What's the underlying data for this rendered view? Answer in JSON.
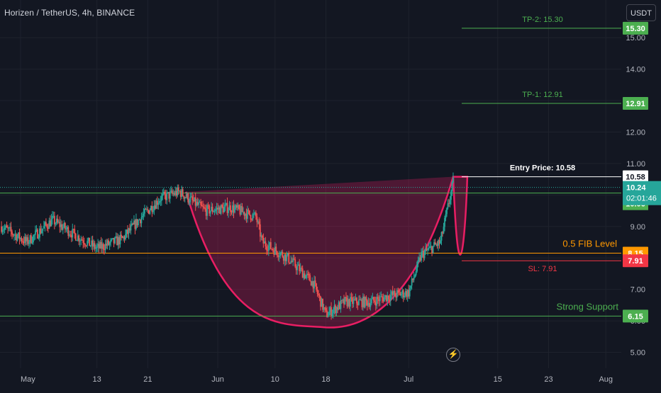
{
  "header": {
    "title": "Horizen / TetherUS, 4h, BINANCE",
    "currency_button": "USDT"
  },
  "colors": {
    "background": "#131722",
    "bull": "#26a69a",
    "bear": "#ef5350",
    "cup": "#e91e63",
    "tp_green": "#4caf50",
    "fib_orange": "#ff9800",
    "sl_red": "#f23645",
    "entry_white": "#ffffff",
    "axis_text": "#b2b5be"
  },
  "icons": {
    "lightning": "lightning-icon"
  },
  "chart_data": {
    "type": "candlestick",
    "symbol": "Horizen / TetherUS",
    "interval": "4h",
    "exchange": "BINANCE",
    "x_axis_labels": [
      "May",
      "13",
      "21",
      "Jun",
      "10",
      "18",
      "Jul",
      "15",
      "23",
      "Aug"
    ],
    "y_axis_ticks": [
      5.0,
      6.0,
      7.0,
      8.0,
      9.0,
      10.0,
      11.0,
      12.0,
      13.0,
      14.0,
      15.0
    ],
    "ylim": [
      4.6,
      16.0
    ],
    "price_path": [
      {
        "date": "2024-04-28",
        "price": 9.0
      },
      {
        "date": "2024-05-02",
        "price": 8.5
      },
      {
        "date": "2024-05-06",
        "price": 9.2
      },
      {
        "date": "2024-05-09",
        "price": 8.8
      },
      {
        "date": "2024-05-13",
        "price": 8.3
      },
      {
        "date": "2024-05-17",
        "price": 8.6
      },
      {
        "date": "2024-05-20",
        "price": 9.3
      },
      {
        "date": "2024-05-23",
        "price": 9.9
      },
      {
        "date": "2024-05-26",
        "price": 10.1
      },
      {
        "date": "2024-05-30",
        "price": 9.5
      },
      {
        "date": "2024-06-03",
        "price": 9.6
      },
      {
        "date": "2024-06-07",
        "price": 9.3
      },
      {
        "date": "2024-06-08",
        "price": 8.5
      },
      {
        "date": "2024-06-12",
        "price": 8.0
      },
      {
        "date": "2024-06-16",
        "price": 7.2
      },
      {
        "date": "2024-06-18",
        "price": 6.2
      },
      {
        "date": "2024-06-21",
        "price": 6.6
      },
      {
        "date": "2024-06-25",
        "price": 6.6
      },
      {
        "date": "2024-06-28",
        "price": 6.8
      },
      {
        "date": "2024-07-01",
        "price": 6.9
      },
      {
        "date": "2024-07-03",
        "price": 8.1
      },
      {
        "date": "2024-07-06",
        "price": 8.5
      },
      {
        "date": "2024-07-08",
        "price": 10.4
      },
      {
        "date": "2024-07-09",
        "price": 8.2
      },
      {
        "date": "2024-07-10",
        "price": 10.24
      }
    ],
    "levels": [
      {
        "name": "tp2",
        "label": "TP-2: 15.30",
        "price": 15.3,
        "tag": "15.30",
        "color": "#4caf50"
      },
      {
        "name": "tp1",
        "label": "TP-1: 12.91",
        "price": 12.91,
        "tag": "12.91",
        "color": "#4caf50"
      },
      {
        "name": "entry",
        "label": "Entry Price: 10.58",
        "price": 10.58,
        "tag": "10.58",
        "color": "#ffffff"
      },
      {
        "name": "fib",
        "label": "0.5 FIB Level",
        "price": 8.15,
        "tag": "8.15",
        "color": "#ff9800"
      },
      {
        "name": "sl",
        "label": "SL: 7.91",
        "price": 7.91,
        "tag": "7.91",
        "color": "#f23645"
      },
      {
        "name": "support",
        "label": "Strong Support",
        "price": 6.15,
        "tag": "6.15",
        "color": "#4caf50"
      }
    ],
    "resistance_line": {
      "price": 10.06,
      "tag": "10.06"
    },
    "current_price": {
      "price": 10.24,
      "tag": "10.24",
      "countdown": "02:01:46"
    },
    "cup": {
      "rim_price": 10.1,
      "bottom_price": 6.15,
      "bottom_date": "2024-06-18"
    }
  }
}
